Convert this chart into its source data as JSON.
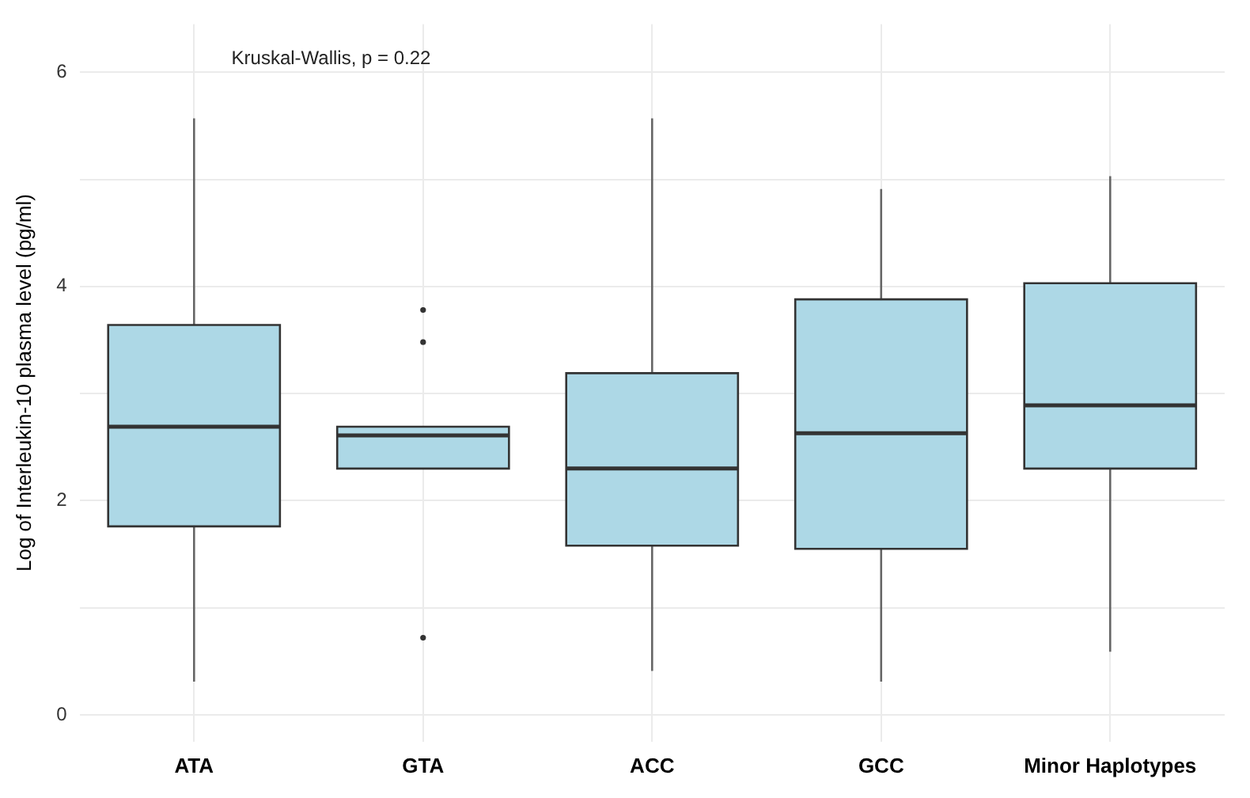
{
  "chart_data": {
    "type": "box",
    "ylabel": "Log of Interleukin-10 plasma level (pg/ml)",
    "annotations": [
      "Kruskal-Wallis, p = 0.22"
    ],
    "categories": [
      "ATA",
      "GTA",
      "ACC",
      "GCC",
      "Minor Haplotypes"
    ],
    "color": "#add8e6",
    "boxes": [
      {
        "low": 0.31,
        "q1": 1.76,
        "median": 2.69,
        "q3": 3.64,
        "high": 5.57
      },
      {
        "low": 2.3,
        "q1": 2.3,
        "median": 2.61,
        "q3": 2.69,
        "high": 2.69,
        "outliers": [
          3.78,
          3.48,
          0.72
        ]
      },
      {
        "low": 0.41,
        "q1": 1.58,
        "median": 2.3,
        "q3": 3.19,
        "high": 5.57
      },
      {
        "low": 0.31,
        "q1": 1.55,
        "median": 2.63,
        "q3": 3.88,
        "high": 4.91
      },
      {
        "low": 0.59,
        "q1": 2.3,
        "median": 2.89,
        "q3": 4.03,
        "high": 5.03
      }
    ],
    "ylim": [
      -0.25,
      6.45
    ],
    "yticks": [
      0,
      {
        "value": 1,
        "label": null
      },
      2,
      {
        "value": 3,
        "label": null
      },
      4,
      {
        "value": 5,
        "label": null
      },
      6
    ],
    "grid": true
  }
}
